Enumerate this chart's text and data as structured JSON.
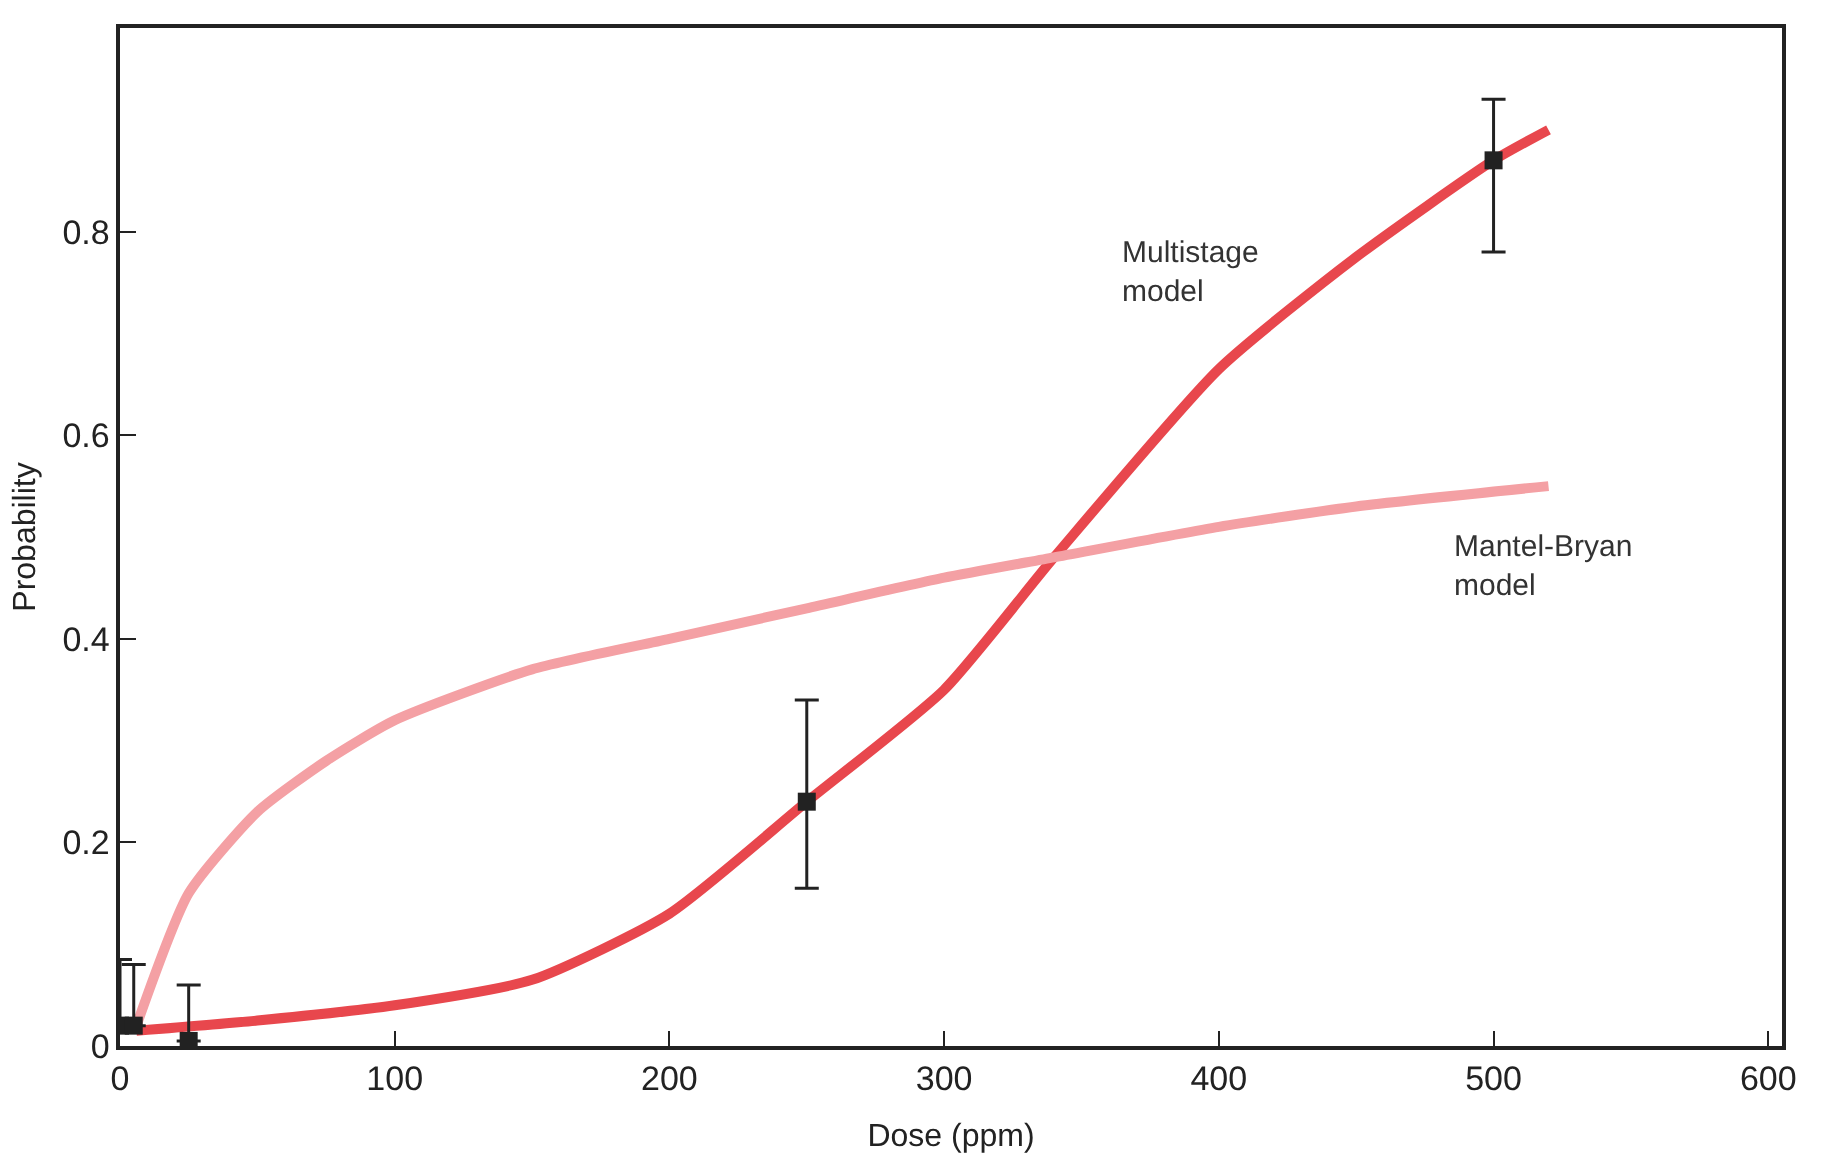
{
  "chart_data": {
    "type": "line",
    "xlabel": "Dose (ppm)",
    "ylabel": "Probability",
    "xlim": [
      0,
      605
    ],
    "xticks": [
      0,
      100,
      200,
      300,
      400,
      500,
      600
    ],
    "ylim": [
      0,
      1
    ],
    "yticks": [
      0,
      0.2,
      0.4,
      0.6,
      0.8
    ],
    "grid": false,
    "legend": false,
    "marker": "none",
    "line_style": "solid",
    "series": [
      {
        "name": "Multistage model",
        "color": "#e8474d",
        "x": [
          6,
          50,
          100,
          150,
          200,
          250,
          300,
          340,
          400,
          450,
          500,
          520
        ],
        "values": [
          0.015,
          0.025,
          0.04,
          0.065,
          0.13,
          0.24,
          0.35,
          0.48,
          0.665,
          0.775,
          0.87,
          0.9
        ]
      },
      {
        "name": "Mantel-Bryan model",
        "color": "#f4a0a4",
        "x": [
          6,
          25,
          50,
          75,
          100,
          150,
          200,
          250,
          300,
          340,
          400,
          450,
          520
        ],
        "values": [
          0.02,
          0.15,
          0.23,
          0.28,
          0.32,
          0.37,
          0.4,
          0.43,
          0.46,
          0.48,
          0.51,
          0.53,
          0.55
        ]
      },
      {
        "type": "scatter",
        "marker": "square",
        "color": "#222222",
        "x": [
          0,
          5,
          25,
          250,
          500
        ],
        "values": [
          0.02,
          0.02,
          0.005,
          0.24,
          0.87
        ],
        "errors": [
          [
            0.02,
            0.085
          ],
          [
            0.02,
            0.08
          ],
          [
            0.005,
            0.06
          ],
          [
            0.155,
            0.34
          ],
          [
            0.78,
            0.93
          ]
        ]
      }
    ]
  }
}
